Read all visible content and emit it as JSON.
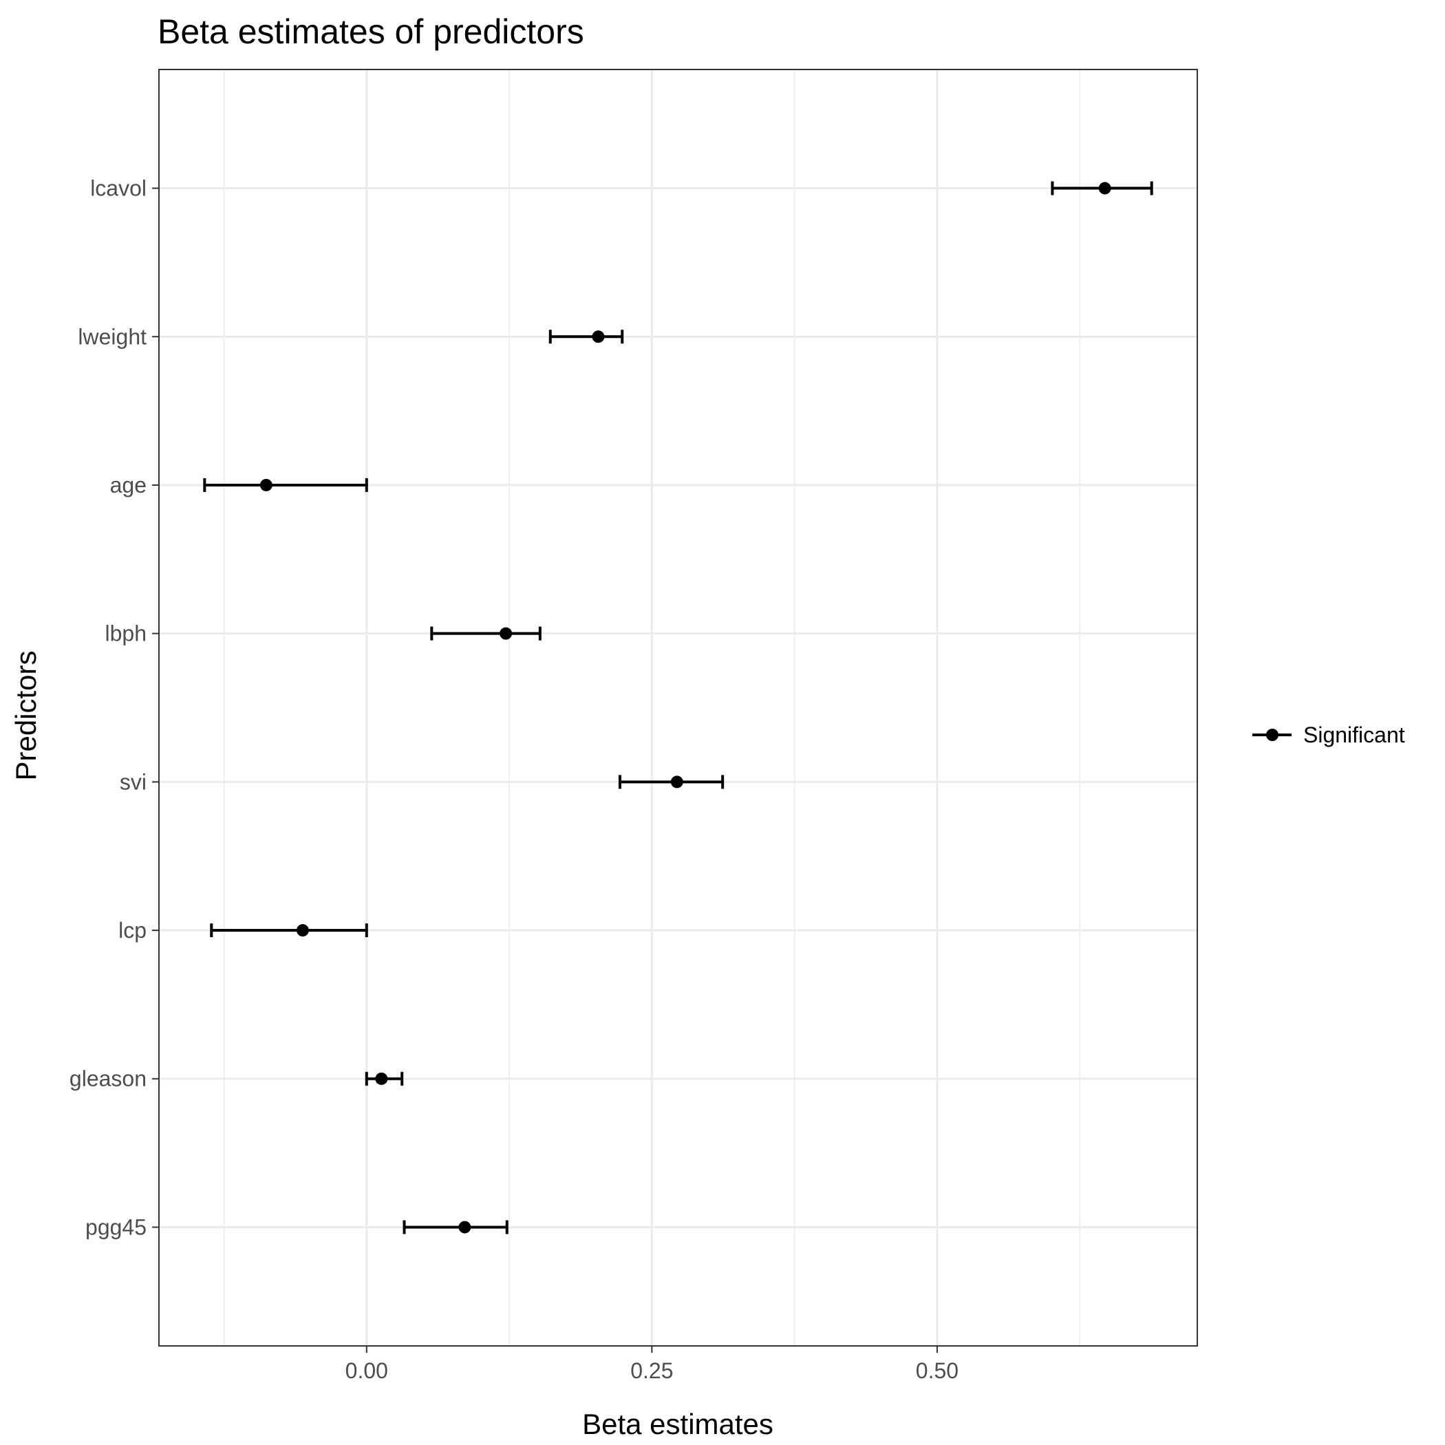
{
  "chart_data": {
    "type": "scatter",
    "title": "Beta estimates of predictors",
    "xlabel": "Beta estimates",
    "ylabel": "Predictors",
    "xlim": [
      -0.182,
      0.728
    ],
    "xticks": [
      {
        "value": 0.0,
        "label": "0.00"
      },
      {
        "value": 0.25,
        "label": "0.25"
      },
      {
        "value": 0.5,
        "label": "0.50"
      }
    ],
    "minor_gridlines": [
      -0.125,
      0.125,
      0.375,
      0.625
    ],
    "grid": true,
    "categories": [
      "lcavol",
      "lweight",
      "age",
      "lbph",
      "svi",
      "lcp",
      "gleason",
      "pgg45"
    ],
    "series": [
      {
        "name": "Significant",
        "estimate": [
          0.647,
          0.203,
          -0.088,
          0.122,
          0.272,
          -0.056,
          0.013,
          0.086
        ],
        "lower": [
          0.601,
          0.161,
          -0.142,
          0.057,
          0.222,
          -0.136,
          0.0,
          0.033
        ],
        "upper": [
          0.688,
          0.224,
          0.0,
          0.152,
          0.312,
          0.0,
          0.031,
          0.123
        ]
      }
    ],
    "legend": {
      "position": "right",
      "entries": [
        "Significant"
      ]
    },
    "colors": {
      "series": "#000000",
      "grid": "#ebebeb",
      "panel_border": "#333333",
      "tick_text": "#4d4d4d"
    }
  }
}
